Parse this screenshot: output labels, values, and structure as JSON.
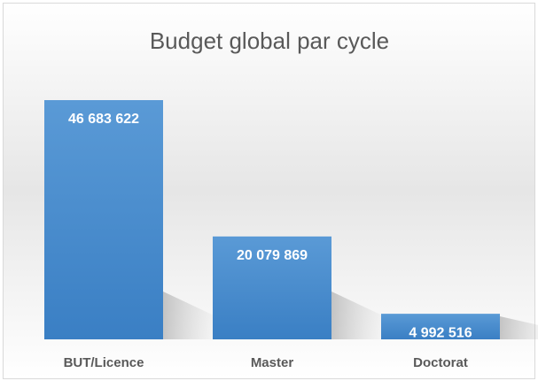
{
  "chart_data": {
    "type": "bar",
    "title": "Budget global par cycle",
    "categories": [
      "BUT/Licence",
      "Master",
      "Doctorat"
    ],
    "values": [
      46683622,
      20079869,
      4992516
    ],
    "value_labels": [
      "46 683 622",
      "20 079 869",
      "4 992 516"
    ],
    "color": "#4a8ed0"
  }
}
